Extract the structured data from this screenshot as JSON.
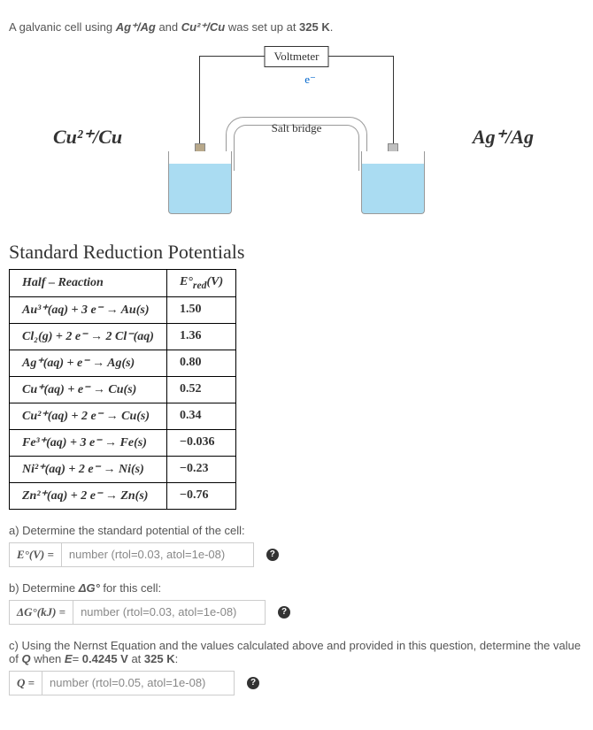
{
  "intro": {
    "prefix": "A galvanic cell using ",
    "pair1": "Ag⁺/Ag",
    "mid": " and ",
    "pair2": "Cu²⁺/Cu",
    "suffix1": " was set up at ",
    "temp": "325 K",
    "suffix2": "."
  },
  "diagram": {
    "voltmeter": "Voltmeter",
    "salt_bridge": "Salt bridge",
    "electron": "e⁻",
    "left_label": "Cu²⁺/Cu",
    "right_label": "Ag⁺/Ag",
    "colors": {
      "solution": "#aadcf2",
      "cu_electrode": "#b8a88a",
      "ag_electrode": "#c0c0c0",
      "wire": "#333333"
    }
  },
  "table": {
    "title": "Standard Reduction Potentials",
    "headers": {
      "reaction": "Half – Reaction",
      "potential": "E°_red(V)"
    },
    "rows": [
      {
        "rxn": "Au³⁺(aq) + 3 e⁻ → Au(s)",
        "val": "1.50"
      },
      {
        "rxn": "Cl₂(g) + 2 e⁻ → 2 Cl⁻(aq)",
        "val": "1.36"
      },
      {
        "rxn": "Ag⁺(aq) + e⁻ → Ag(s)",
        "val": "0.80"
      },
      {
        "rxn": "Cu⁺(aq) + e⁻ → Cu(s)",
        "val": "0.52"
      },
      {
        "rxn": "Cu²⁺(aq) + 2 e⁻ → Cu(s)",
        "val": "0.34"
      },
      {
        "rxn": "Fe³⁺(aq) + 3 e⁻ → Fe(s)",
        "val": "−0.036"
      },
      {
        "rxn": "Ni²⁺(aq) + 2 e⁻ → Ni(s)",
        "val": "−0.23"
      },
      {
        "rxn": "Zn²⁺(aq) + 2 e⁻ → Zn(s)",
        "val": "−0.76"
      }
    ]
  },
  "parts": {
    "a": {
      "prompt": "a) Determine the standard potential of the cell:",
      "label": "E°(V) =",
      "placeholder": "number (rtol=0.03, atol=1e-08)"
    },
    "b": {
      "prompt_prefix": "b) Determine ",
      "prompt_var": "ΔG°",
      "prompt_suffix": " for this cell:",
      "label": "ΔG°(kJ) =",
      "placeholder": "number (rtol=0.03, atol=1e-08)"
    },
    "c": {
      "prompt_p1": "c) Using the Nernst Equation and the values calculated above and provided in this question, determine the value of ",
      "q": "Q",
      "prompt_p2": " when ",
      "e": "E",
      "prompt_p3": "= ",
      "val": "0.4245 V",
      "prompt_p4": " at ",
      "temp": "325 K",
      "prompt_p5": ":",
      "label": "Q =",
      "placeholder": "number (rtol=0.05, atol=1e-08)"
    }
  },
  "help_icon": "?"
}
